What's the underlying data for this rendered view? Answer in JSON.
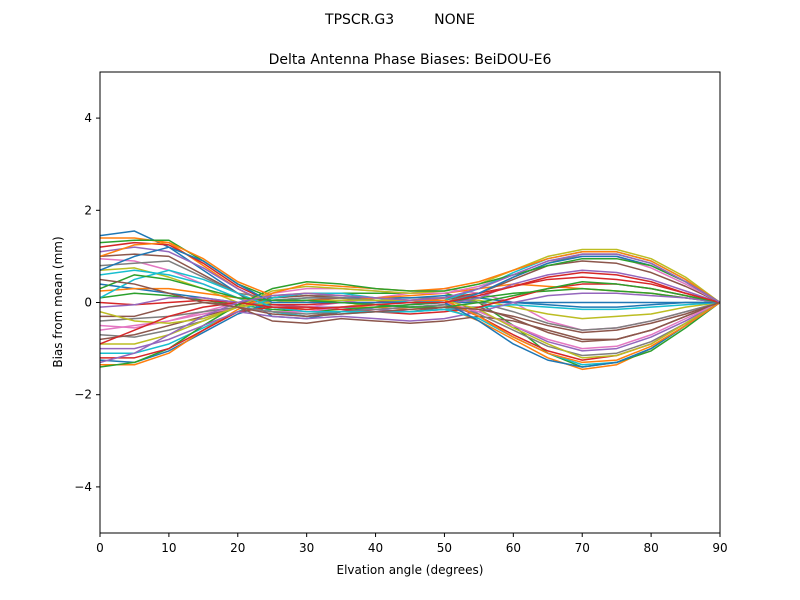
{
  "figure": {
    "suptitle": "TPSCR.G3         NONE"
  },
  "chart_data": {
    "type": "line",
    "title": "Delta Antenna Phase Biases: BeiDOU-E6",
    "xlabel": "Elvation angle (degrees)",
    "ylabel": "Bias from mean (mm)",
    "xlim": [
      0,
      90
    ],
    "ylim": [
      -5,
      5
    ],
    "xticks": [
      0,
      10,
      20,
      30,
      40,
      50,
      60,
      70,
      80,
      90
    ],
    "yticks": [
      4,
      2,
      0,
      -2,
      -4
    ],
    "ytick_labels": [
      "4",
      "2",
      "0",
      "−2",
      "−4"
    ],
    "grid": false,
    "legend": "none",
    "x": [
      0,
      5,
      10,
      15,
      20,
      25,
      30,
      35,
      40,
      45,
      50,
      55,
      60,
      65,
      70,
      75,
      80,
      85,
      90
    ],
    "color_cycle": [
      "#1f77b4",
      "#ff7f0e",
      "#2ca02c",
      "#d62728",
      "#9467bd",
      "#8c564b",
      "#e377c2",
      "#7f7f7f",
      "#bcbd22",
      "#17becf"
    ],
    "series": [
      {
        "values": [
          1.45,
          1.55,
          1.2,
          0.7,
          0.2,
          -0.3,
          -0.35,
          -0.2,
          -0.1,
          -0.05,
          0.0,
          0.0,
          0.0,
          0.0,
          0.0,
          0.0,
          0.0,
          0.0,
          0.0
        ]
      },
      {
        "values": [
          1.4,
          1.4,
          1.3,
          0.8,
          0.3,
          -0.1,
          -0.15,
          -0.1,
          -0.1,
          -0.15,
          -0.1,
          -0.4,
          -0.8,
          -1.2,
          -1.45,
          -1.35,
          -1.0,
          -0.5,
          0.0
        ]
      },
      {
        "values": [
          1.3,
          1.35,
          1.35,
          0.9,
          0.4,
          0.1,
          0.2,
          0.2,
          0.2,
          0.2,
          0.2,
          0.0,
          -0.5,
          -1.1,
          -1.4,
          -1.3,
          -1.05,
          -0.55,
          0.0
        ]
      },
      {
        "values": [
          1.2,
          1.3,
          1.25,
          0.85,
          0.35,
          0.0,
          0.05,
          0.1,
          0.05,
          0.0,
          0.0,
          -0.3,
          -0.7,
          -1.05,
          -1.25,
          -1.15,
          -0.9,
          -0.45,
          0.0
        ]
      },
      {
        "values": [
          1.1,
          1.2,
          1.1,
          0.75,
          0.3,
          -0.05,
          -0.1,
          -0.1,
          -0.15,
          -0.2,
          -0.15,
          -0.2,
          -0.5,
          -0.85,
          -1.05,
          -1.0,
          -0.75,
          -0.4,
          0.0
        ]
      },
      {
        "values": [
          1.0,
          1.05,
          1.0,
          0.6,
          0.2,
          -0.2,
          -0.3,
          -0.2,
          -0.2,
          -0.2,
          -0.1,
          -0.1,
          -0.35,
          -0.65,
          -0.85,
          -0.8,
          -0.6,
          -0.3,
          0.0
        ]
      },
      {
        "values": [
          0.95,
          0.9,
          0.7,
          0.4,
          0.1,
          -0.1,
          -0.1,
          0.0,
          0.1,
          0.2,
          0.3,
          0.2,
          0.0,
          -0.4,
          -0.6,
          -0.55,
          -0.4,
          -0.2,
          0.0
        ]
      },
      {
        "values": [
          0.8,
          0.85,
          0.9,
          0.55,
          0.2,
          0.1,
          0.15,
          0.15,
          0.1,
          0.1,
          0.1,
          0.0,
          -0.2,
          -0.45,
          -0.6,
          -0.55,
          -0.4,
          -0.2,
          0.0
        ]
      },
      {
        "values": [
          0.7,
          0.75,
          0.55,
          0.3,
          0.0,
          -0.1,
          -0.15,
          -0.1,
          0.0,
          0.0,
          0.1,
          0.05,
          -0.1,
          -0.25,
          -0.35,
          -0.3,
          -0.25,
          -0.1,
          0.0
        ]
      },
      {
        "values": [
          0.6,
          0.7,
          0.6,
          0.4,
          0.1,
          -0.2,
          -0.3,
          -0.25,
          -0.2,
          -0.2,
          -0.15,
          -0.1,
          -0.05,
          -0.1,
          -0.15,
          -0.15,
          -0.1,
          -0.05,
          0.0
        ]
      },
      {
        "values": [
          0.4,
          0.3,
          0.2,
          0.1,
          0.0,
          0.05,
          0.1,
          0.1,
          0.1,
          0.1,
          0.15,
          0.1,
          0.0,
          -0.05,
          -0.1,
          -0.1,
          -0.05,
          0.0,
          0.0
        ]
      },
      {
        "values": [
          0.25,
          0.3,
          0.3,
          0.2,
          0.1,
          0.0,
          0.0,
          0.05,
          0.1,
          0.15,
          0.2,
          0.3,
          0.4,
          0.35,
          0.3,
          0.25,
          0.2,
          0.1,
          0.0
        ]
      },
      {
        "values": [
          0.1,
          0.2,
          0.15,
          0.05,
          -0.05,
          -0.15,
          -0.2,
          -0.15,
          -0.1,
          -0.05,
          0.0,
          0.1,
          0.2,
          0.25,
          0.3,
          0.25,
          0.2,
          0.1,
          0.0
        ]
      },
      {
        "values": [
          0.0,
          -0.05,
          0.0,
          0.05,
          0.0,
          -0.05,
          -0.05,
          0.0,
          0.0,
          0.05,
          0.1,
          0.2,
          0.35,
          0.5,
          0.55,
          0.5,
          0.4,
          0.2,
          0.0
        ]
      },
      {
        "values": [
          -0.1,
          -0.05,
          0.1,
          0.1,
          0.0,
          -0.1,
          -0.2,
          -0.2,
          -0.15,
          -0.1,
          -0.05,
          0.1,
          0.4,
          0.6,
          0.7,
          0.65,
          0.5,
          0.25,
          0.0
        ]
      },
      {
        "values": [
          -0.3,
          -0.3,
          -0.1,
          0.0,
          -0.05,
          0.1,
          0.15,
          0.1,
          0.05,
          0.0,
          0.05,
          0.2,
          0.5,
          0.8,
          0.9,
          0.85,
          0.65,
          0.35,
          0.0
        ]
      },
      {
        "values": [
          -0.5,
          -0.55,
          -0.4,
          -0.2,
          0.0,
          0.2,
          0.3,
          0.3,
          0.25,
          0.2,
          0.2,
          0.35,
          0.6,
          0.9,
          1.0,
          1.0,
          0.75,
          0.4,
          0.0
        ]
      },
      {
        "values": [
          -0.7,
          -0.75,
          -0.6,
          -0.4,
          -0.1,
          0.05,
          0.1,
          0.1,
          0.05,
          0.0,
          0.0,
          0.2,
          0.55,
          0.85,
          1.05,
          1.05,
          0.85,
          0.45,
          0.0
        ]
      },
      {
        "values": [
          -0.9,
          -0.9,
          -0.7,
          -0.4,
          -0.1,
          0.25,
          0.35,
          0.3,
          0.25,
          0.2,
          0.25,
          0.4,
          0.7,
          1.0,
          1.15,
          1.15,
          0.95,
          0.55,
          0.0
        ]
      },
      {
        "values": [
          -1.1,
          -1.1,
          -0.9,
          -0.55,
          -0.2,
          0.1,
          0.2,
          0.2,
          0.1,
          0.0,
          0.05,
          0.3,
          0.65,
          0.95,
          1.1,
          1.1,
          0.9,
          0.5,
          0.0
        ]
      },
      {
        "values": [
          -1.25,
          -1.3,
          -1.05,
          -0.65,
          -0.25,
          0.0,
          0.05,
          0.0,
          -0.05,
          -0.1,
          -0.05,
          0.2,
          0.55,
          0.85,
          1.0,
          1.0,
          0.8,
          0.45,
          0.0
        ]
      },
      {
        "values": [
          -1.35,
          -1.35,
          -1.1,
          -0.6,
          -0.15,
          0.2,
          0.4,
          0.35,
          0.3,
          0.25,
          0.3,
          0.45,
          0.7,
          0.95,
          1.1,
          1.1,
          0.9,
          0.5,
          0.0
        ]
      },
      {
        "values": [
          -1.4,
          -1.3,
          -1.0,
          -0.5,
          -0.05,
          0.3,
          0.45,
          0.4,
          0.3,
          0.25,
          0.25,
          0.4,
          0.6,
          0.8,
          0.95,
          0.95,
          0.8,
          0.45,
          0.0
        ]
      },
      {
        "values": [
          -1.2,
          -1.2,
          -1.0,
          -0.6,
          -0.2,
          -0.1,
          -0.1,
          -0.15,
          -0.2,
          -0.25,
          -0.2,
          -0.1,
          0.1,
          0.3,
          0.4,
          0.4,
          0.3,
          0.15,
          0.0
        ]
      },
      {
        "values": [
          -1.0,
          -1.0,
          -0.8,
          -0.5,
          -0.2,
          -0.3,
          -0.35,
          -0.3,
          -0.35,
          -0.4,
          -0.35,
          -0.2,
          0.0,
          0.15,
          0.2,
          0.2,
          0.15,
          0.1,
          0.0
        ]
      },
      {
        "values": [
          -0.8,
          -0.7,
          -0.5,
          -0.3,
          -0.1,
          -0.4,
          -0.45,
          -0.35,
          -0.4,
          -0.45,
          -0.4,
          -0.3,
          -0.4,
          -0.6,
          -0.8,
          -0.8,
          -0.6,
          -0.3,
          0.0
        ]
      },
      {
        "values": [
          -0.6,
          -0.5,
          -0.4,
          -0.25,
          -0.1,
          -0.2,
          -0.2,
          -0.1,
          -0.05,
          0.0,
          0.0,
          -0.2,
          -0.5,
          -0.8,
          -1.0,
          -0.95,
          -0.7,
          -0.35,
          0.0
        ]
      },
      {
        "values": [
          -0.4,
          -0.35,
          -0.3,
          -0.2,
          -0.1,
          -0.2,
          -0.25,
          -0.2,
          -0.15,
          -0.1,
          -0.05,
          -0.25,
          -0.6,
          -0.95,
          -1.15,
          -1.1,
          -0.85,
          -0.45,
          0.0
        ]
      },
      {
        "values": [
          -0.2,
          -0.4,
          -0.45,
          -0.35,
          -0.1,
          0.0,
          0.05,
          0.05,
          0.05,
          0.05,
          0.05,
          -0.15,
          -0.55,
          -0.9,
          -1.2,
          -1.15,
          -0.9,
          -0.45,
          0.0
        ]
      },
      {
        "values": [
          0.1,
          0.5,
          0.7,
          0.5,
          0.2,
          -0.1,
          -0.2,
          -0.2,
          -0.2,
          -0.2,
          -0.15,
          -0.35,
          -0.75,
          -1.1,
          -1.35,
          -1.3,
          -1.0,
          -0.5,
          0.0
        ]
      },
      {
        "values": [
          0.7,
          1.0,
          1.2,
          0.9,
          0.4,
          0.0,
          0.0,
          0.0,
          0.0,
          0.0,
          0.0,
          -0.4,
          -0.9,
          -1.25,
          -1.4,
          -1.3,
          -1.0,
          -0.5,
          0.0
        ]
      },
      {
        "values": [
          1.0,
          1.25,
          1.3,
          0.95,
          0.45,
          0.15,
          0.2,
          0.15,
          0.1,
          0.05,
          0.05,
          -0.3,
          -0.75,
          -1.1,
          -1.3,
          -1.25,
          -0.95,
          -0.5,
          0.0
        ]
      },
      {
        "values": [
          0.3,
          0.6,
          0.5,
          0.3,
          0.1,
          0.05,
          0.05,
          0.0,
          -0.05,
          -0.1,
          -0.1,
          0.0,
          0.15,
          0.3,
          0.45,
          0.4,
          0.3,
          0.15,
          0.0
        ]
      },
      {
        "values": [
          -0.9,
          -0.6,
          -0.3,
          -0.1,
          0.0,
          -0.1,
          -0.15,
          -0.1,
          -0.05,
          0.0,
          0.0,
          0.15,
          0.35,
          0.55,
          0.65,
          0.6,
          0.45,
          0.2,
          0.0
        ]
      },
      {
        "values": [
          -1.3,
          -1.1,
          -0.7,
          -0.3,
          0.0,
          0.15,
          0.2,
          0.15,
          0.1,
          0.05,
          0.1,
          0.3,
          0.6,
          0.9,
          1.05,
          1.05,
          0.85,
          0.45,
          0.0
        ]
      },
      {
        "values": [
          0.5,
          0.4,
          0.2,
          0.0,
          -0.1,
          -0.25,
          -0.3,
          -0.25,
          -0.2,
          -0.15,
          -0.1,
          -0.15,
          -0.3,
          -0.5,
          -0.65,
          -0.6,
          -0.45,
          -0.25,
          0.0
        ]
      }
    ]
  }
}
